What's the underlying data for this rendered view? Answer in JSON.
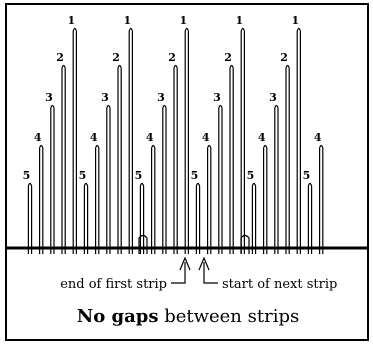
{
  "diagram": {
    "strips": [
      {
        "spikes": [
          5,
          4,
          3,
          2,
          1
        ]
      },
      {
        "spikes": [
          5,
          4,
          3,
          2,
          1
        ]
      },
      {
        "spikes": [
          5,
          4,
          3,
          2,
          1
        ]
      },
      {
        "spikes": [
          5,
          4,
          3,
          2,
          1
        ]
      },
      {
        "spikes": [
          5,
          4,
          3,
          2,
          1,
          5,
          4
        ]
      }
    ],
    "annotations": {
      "end_label": "end of first strip",
      "start_label": "start of next strip"
    },
    "caption": {
      "bold": "No gaps",
      "rest": " between strips"
    }
  }
}
